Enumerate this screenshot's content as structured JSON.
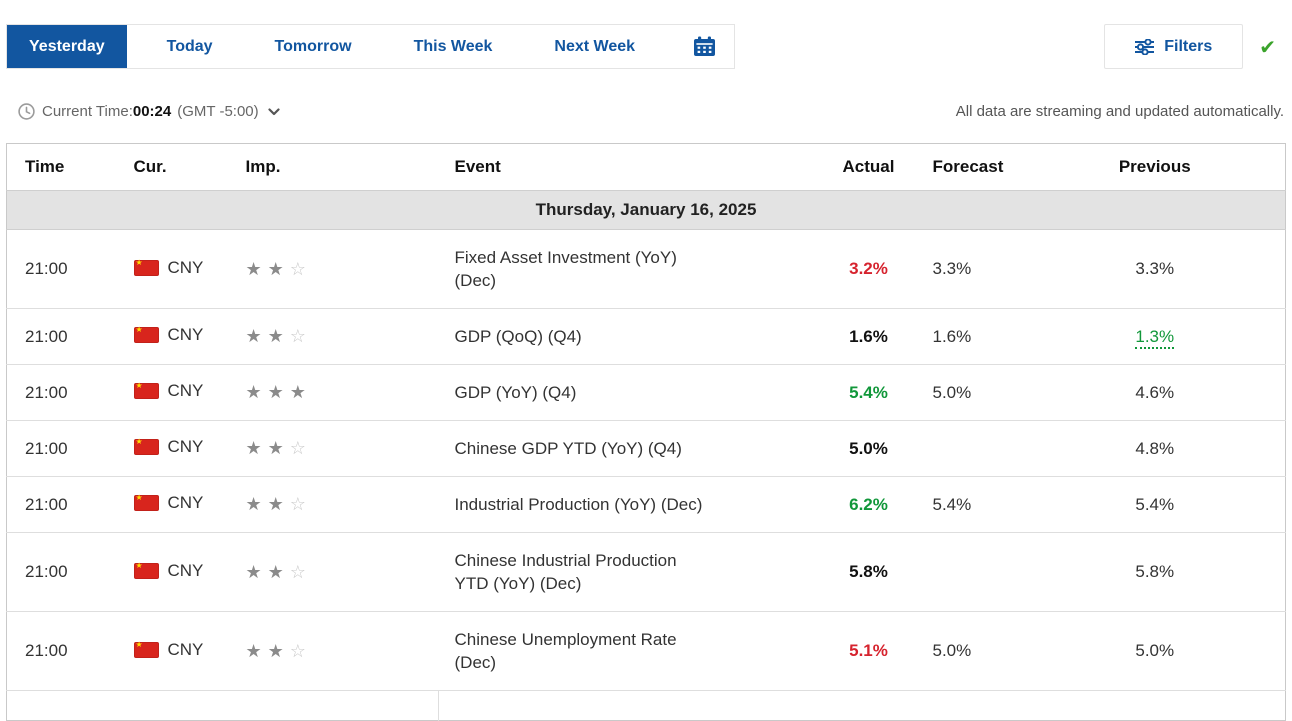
{
  "tabs": [
    {
      "label": "Yesterday",
      "active": true
    },
    {
      "label": "Today",
      "active": false
    },
    {
      "label": "Tomorrow",
      "active": false
    },
    {
      "label": "This Week",
      "active": false
    },
    {
      "label": "Next Week",
      "active": false
    }
  ],
  "filters": {
    "label": "Filters",
    "applied_check": "✔"
  },
  "time_bar": {
    "prefix": "Current Time:",
    "time": "00:24",
    "timezone": "(GMT -5:00)"
  },
  "streaming_note": "All data are streaming and updated automatically.",
  "icons": {
    "star_filled": "★",
    "star_empty": "☆"
  },
  "colors": {
    "accent": "#1256a0",
    "red": "#d6232e",
    "green": "#11973a",
    "black": "#111111",
    "flag_red": "#d8251d"
  },
  "table": {
    "headers": {
      "time": "Time",
      "cur": "Cur.",
      "imp": "Imp.",
      "event": "Event",
      "actual": "Actual",
      "forecast": "Forecast",
      "previous": "Previous"
    },
    "date_header": "Thursday, January 16, 2025",
    "rows": [
      {
        "time": "21:00",
        "currency": "CNY",
        "importance": 2,
        "event": "Fixed Asset Investment (YoY) (Dec)",
        "actual": "3.2%",
        "actual_color": "red",
        "forecast": "3.3%",
        "previous": "3.3%",
        "previous_revised": false
      },
      {
        "time": "21:00",
        "currency": "CNY",
        "importance": 2,
        "event": "GDP (QoQ) (Q4)",
        "actual": "1.6%",
        "actual_color": "black",
        "forecast": "1.6%",
        "previous": "1.3%",
        "previous_revised": true
      },
      {
        "time": "21:00",
        "currency": "CNY",
        "importance": 3,
        "event": "GDP (YoY) (Q4)",
        "actual": "5.4%",
        "actual_color": "green",
        "forecast": "5.0%",
        "previous": "4.6%",
        "previous_revised": false
      },
      {
        "time": "21:00",
        "currency": "CNY",
        "importance": 2,
        "event": "Chinese GDP YTD (YoY) (Q4)",
        "actual": "5.0%",
        "actual_color": "black",
        "forecast": "",
        "previous": "4.8%",
        "previous_revised": false
      },
      {
        "time": "21:00",
        "currency": "CNY",
        "importance": 2,
        "event": "Industrial Production (YoY) (Dec)",
        "actual": "6.2%",
        "actual_color": "green",
        "forecast": "5.4%",
        "previous": "5.4%",
        "previous_revised": false
      },
      {
        "time": "21:00",
        "currency": "CNY",
        "importance": 2,
        "event": "Chinese Industrial Production YTD (YoY) (Dec)",
        "actual": "5.8%",
        "actual_color": "black",
        "forecast": "",
        "previous": "5.8%",
        "previous_revised": false
      },
      {
        "time": "21:00",
        "currency": "CNY",
        "importance": 2,
        "event": "Chinese Unemployment Rate (Dec)",
        "actual": "5.1%",
        "actual_color": "red",
        "forecast": "5.0%",
        "previous": "5.0%",
        "previous_revised": false
      }
    ]
  }
}
